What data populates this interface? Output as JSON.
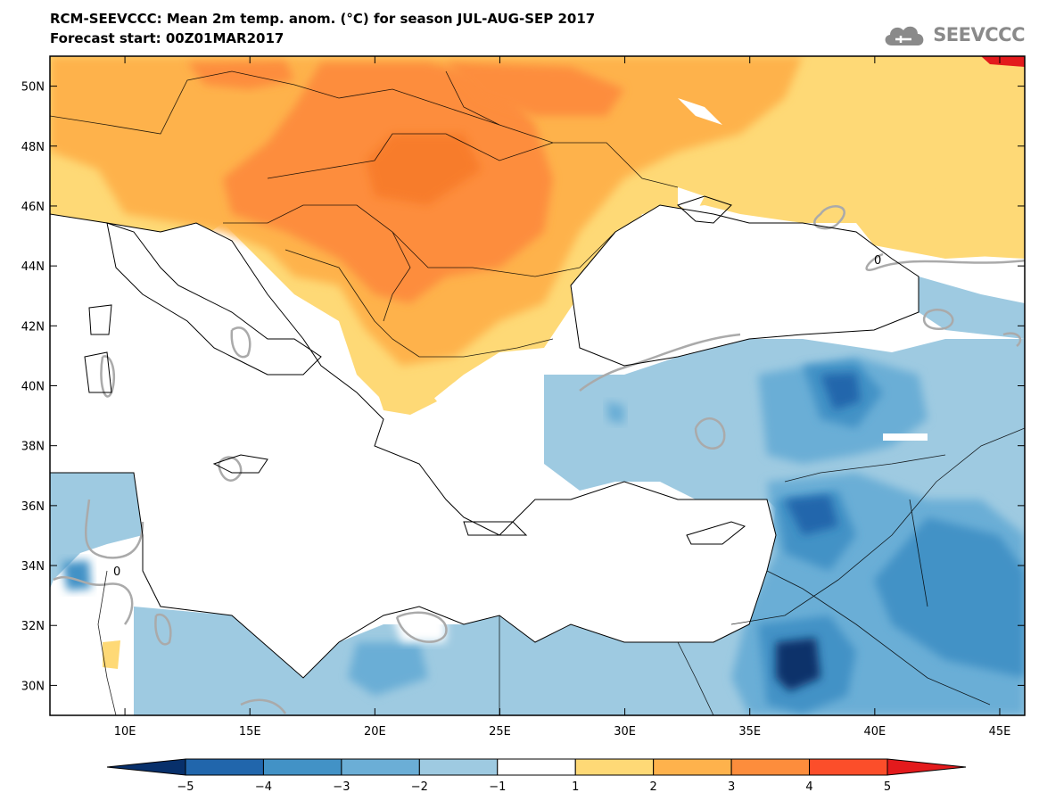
{
  "header": {
    "title_line1": "RCM-SEEVCCC: Mean 2m temp. anom. (°C) for season JUL-AUG-SEP 2017",
    "title_line2": "Forecast start: 00Z01MAR2017"
  },
  "logo": {
    "text": "SEEVCCC",
    "icon": "cloud-icon"
  },
  "map": {
    "lon_range": [
      7,
      46
    ],
    "lat_range": [
      29,
      51
    ],
    "lon_ticks": [
      "10E",
      "15E",
      "20E",
      "25E",
      "30E",
      "35E",
      "40E",
      "45E"
    ],
    "lat_ticks": [
      "30N",
      "32N",
      "34N",
      "36N",
      "38N",
      "40N",
      "42N",
      "44N",
      "46N",
      "48N",
      "50N"
    ],
    "contour_label": "0"
  },
  "colorbar": {
    "labels": [
      "−5",
      "−4",
      "−3",
      "−2",
      "−1",
      "1",
      "2",
      "3",
      "4",
      "5"
    ],
    "colors": [
      "#08306b",
      "#2166ac",
      "#4292c6",
      "#6baed6",
      "#9ecae1",
      "#ffffff",
      "#fed976",
      "#feb24c",
      "#fd8d3c",
      "#fc4e2a",
      "#e31a1c"
    ]
  }
}
